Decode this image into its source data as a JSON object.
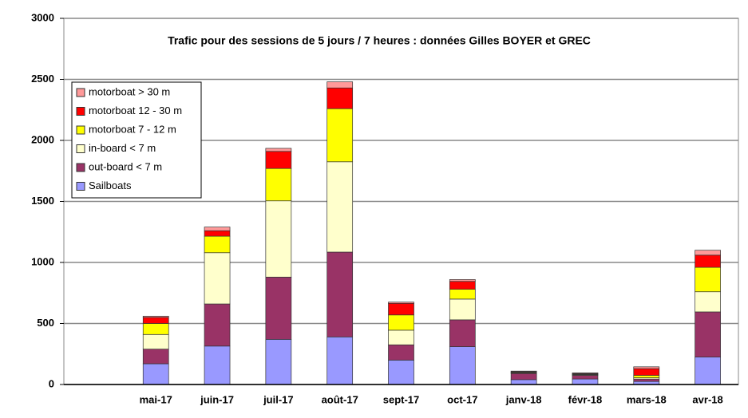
{
  "chart_data": {
    "type": "stacked_bar",
    "title": "Trafic  pour des sessions de 5 jours / 7 heures : données Gilles BOYER et GREC",
    "categories": [
      null,
      "mai-17",
      "juin-17",
      "juil-17",
      "août-17",
      "sept-17",
      "oct-17",
      "janv-18",
      "févr-18",
      "mars-18",
      "avr-18"
    ],
    "series": [
      {
        "name": "Sailboats",
        "color": "#9999ff",
        "values": [
          null,
          170,
          315,
          370,
          390,
          200,
          310,
          40,
          45,
          25,
          225
        ]
      },
      {
        "name": "out-board < 7 m",
        "color": "#993366",
        "values": [
          null,
          120,
          345,
          510,
          695,
          125,
          220,
          50,
          30,
          20,
          370
        ]
      },
      {
        "name": "in-board < 7 m",
        "color": "#ffffcc",
        "values": [
          null,
          120,
          420,
          625,
          740,
          120,
          170,
          5,
          5,
          10,
          165
        ]
      },
      {
        "name": "motorboat 7 - 12 m",
        "color": "#ffff00",
        "values": [
          null,
          90,
          135,
          265,
          435,
          125,
          80,
          5,
          5,
          20,
          200
        ]
      },
      {
        "name": "motorboat 12 - 30 m",
        "color": "#ff0000",
        "values": [
          null,
          50,
          45,
          140,
          170,
          95,
          65,
          5,
          5,
          55,
          100
        ]
      },
      {
        "name": "motorboat > 30 m",
        "color": "#ff9999",
        "values": [
          null,
          10,
          30,
          25,
          50,
          10,
          15,
          5,
          5,
          15,
          40
        ]
      }
    ],
    "ylim": [
      0,
      3000
    ],
    "yticks": [
      0,
      500,
      1000,
      1500,
      2000,
      2500,
      3000
    ],
    "grid": true,
    "legend": "top-left"
  }
}
